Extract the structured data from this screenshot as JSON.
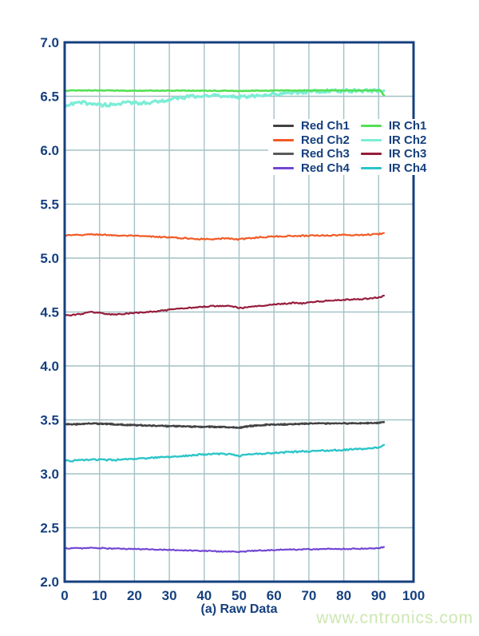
{
  "watermark": {
    "text": "www.cntronics.com",
    "color": "#cde7b2"
  },
  "colors": {
    "axis_text": "#16407f",
    "plot_border": "#16407f",
    "gridline": "#a4c2c6",
    "background": "#ffffff"
  },
  "chart_data": {
    "type": "line",
    "title": "",
    "xlabel": "(a) Raw Data",
    "ylabel": "",
    "xlim": [
      0,
      100
    ],
    "ylim": [
      2.0,
      7.0
    ],
    "x_ticks": [
      0,
      10,
      20,
      30,
      40,
      50,
      60,
      70,
      80,
      90,
      100
    ],
    "y_ticks": [
      2.0,
      2.5,
      3.0,
      3.5,
      4.0,
      4.5,
      5.0,
      5.5,
      6.0,
      6.5,
      7.0
    ],
    "grid": true,
    "legend_position": "top-right-inside",
    "series": [
      {
        "name": "Red Ch1",
        "color": "#414042",
        "width": 2.2,
        "noise": 0.005,
        "points": [
          [
            0,
            3.455
          ],
          [
            5,
            3.46
          ],
          [
            8,
            3.465
          ],
          [
            12,
            3.46
          ],
          [
            16,
            3.455
          ],
          [
            20,
            3.45
          ],
          [
            25,
            3.445
          ],
          [
            30,
            3.44
          ],
          [
            35,
            3.437
          ],
          [
            40,
            3.435
          ],
          [
            45,
            3.434
          ],
          [
            48,
            3.43
          ],
          [
            50,
            3.425
          ],
          [
            53,
            3.44
          ],
          [
            56,
            3.45
          ],
          [
            60,
            3.455
          ],
          [
            64,
            3.458
          ],
          [
            68,
            3.462
          ],
          [
            72,
            3.465
          ],
          [
            76,
            3.465
          ],
          [
            80,
            3.466
          ],
          [
            84,
            3.466
          ],
          [
            87,
            3.468
          ],
          [
            90,
            3.47
          ],
          [
            91.5,
            3.478
          ]
        ]
      },
      {
        "name": "Red Ch2",
        "color": "#f15a24",
        "width": 2.2,
        "noise": 0.006,
        "points": [
          [
            0,
            5.21
          ],
          [
            4,
            5.213
          ],
          [
            8,
            5.22
          ],
          [
            12,
            5.215
          ],
          [
            16,
            5.208
          ],
          [
            20,
            5.205
          ],
          [
            24,
            5.2
          ],
          [
            28,
            5.195
          ],
          [
            32,
            5.188
          ],
          [
            36,
            5.18
          ],
          [
            40,
            5.176
          ],
          [
            44,
            5.18
          ],
          [
            47,
            5.182
          ],
          [
            50,
            5.172
          ],
          [
            53,
            5.185
          ],
          [
            56,
            5.193
          ],
          [
            60,
            5.2
          ],
          [
            64,
            5.204
          ],
          [
            68,
            5.207
          ],
          [
            72,
            5.21
          ],
          [
            76,
            5.21
          ],
          [
            80,
            5.214
          ],
          [
            84,
            5.214
          ],
          [
            87,
            5.218
          ],
          [
            90,
            5.222
          ],
          [
            91.5,
            5.232
          ]
        ]
      },
      {
        "name": "Red Ch3",
        "color": "#58595b",
        "width": 2.2,
        "noise": 0.005,
        "points": [
          [
            0,
            3.459
          ],
          [
            5,
            3.464
          ],
          [
            8,
            3.469
          ],
          [
            12,
            3.464
          ],
          [
            16,
            3.459
          ],
          [
            20,
            3.454
          ],
          [
            25,
            3.449
          ],
          [
            30,
            3.444
          ],
          [
            35,
            3.441
          ],
          [
            40,
            3.439
          ],
          [
            45,
            3.438
          ],
          [
            48,
            3.434
          ],
          [
            50,
            3.429
          ],
          [
            53,
            3.444
          ],
          [
            56,
            3.454
          ],
          [
            60,
            3.459
          ],
          [
            64,
            3.462
          ],
          [
            68,
            3.466
          ],
          [
            72,
            3.469
          ],
          [
            76,
            3.469
          ],
          [
            80,
            3.47
          ],
          [
            84,
            3.47
          ],
          [
            87,
            3.472
          ],
          [
            90,
            3.474
          ],
          [
            91.5,
            3.482
          ]
        ]
      },
      {
        "name": "Red Ch4",
        "color": "#7247d4",
        "width": 2.2,
        "noise": 0.005,
        "points": [
          [
            0,
            2.31
          ],
          [
            5,
            2.31
          ],
          [
            8,
            2.314
          ],
          [
            12,
            2.308
          ],
          [
            16,
            2.305
          ],
          [
            20,
            2.302
          ],
          [
            25,
            2.3
          ],
          [
            30,
            2.296
          ],
          [
            35,
            2.29
          ],
          [
            40,
            2.285
          ],
          [
            44,
            2.281
          ],
          [
            48,
            2.279
          ],
          [
            50,
            2.276
          ],
          [
            53,
            2.284
          ],
          [
            56,
            2.29
          ],
          [
            60,
            2.294
          ],
          [
            65,
            2.298
          ],
          [
            70,
            2.3
          ],
          [
            75,
            2.303
          ],
          [
            80,
            2.304
          ],
          [
            84,
            2.306
          ],
          [
            87,
            2.308
          ],
          [
            90,
            2.312
          ],
          [
            91.5,
            2.322
          ]
        ]
      },
      {
        "name": "IR Ch1",
        "color": "#55e055",
        "width": 2.6,
        "noise": 0.003,
        "points": [
          [
            0,
            6.553
          ],
          [
            10,
            6.554
          ],
          [
            20,
            6.552
          ],
          [
            30,
            6.553
          ],
          [
            40,
            6.552
          ],
          [
            50,
            6.55
          ],
          [
            60,
            6.553
          ],
          [
            70,
            6.554
          ],
          [
            80,
            6.554
          ],
          [
            88,
            6.555
          ],
          [
            90.5,
            6.553
          ],
          [
            91.5,
            6.51
          ]
        ]
      },
      {
        "name": "IR Ch2",
        "color": "#7cedd6",
        "width": 3.2,
        "noise": 0.016,
        "points": [
          [
            0,
            6.408
          ],
          [
            2,
            6.425
          ],
          [
            4,
            6.438
          ],
          [
            6,
            6.44
          ],
          [
            8,
            6.432
          ],
          [
            10,
            6.422
          ],
          [
            12,
            6.42
          ],
          [
            14,
            6.426
          ],
          [
            16,
            6.434
          ],
          [
            18,
            6.438
          ],
          [
            20,
            6.44
          ],
          [
            22,
            6.44
          ],
          [
            24,
            6.444
          ],
          [
            26,
            6.45
          ],
          [
            28,
            6.458
          ],
          [
            30,
            6.468
          ],
          [
            32,
            6.478
          ],
          [
            34,
            6.488
          ],
          [
            36,
            6.495
          ],
          [
            38,
            6.5
          ],
          [
            40,
            6.503
          ],
          [
            42,
            6.506
          ],
          [
            44,
            6.508
          ],
          [
            46,
            6.505
          ],
          [
            48,
            6.5
          ],
          [
            50,
            6.49
          ],
          [
            52,
            6.497
          ],
          [
            54,
            6.505
          ],
          [
            56,
            6.512
          ],
          [
            58,
            6.518
          ],
          [
            60,
            6.52
          ],
          [
            62,
            6.525
          ],
          [
            64,
            6.53
          ],
          [
            66,
            6.536
          ],
          [
            68,
            6.54
          ],
          [
            70,
            6.543
          ],
          [
            73,
            6.546
          ],
          [
            76,
            6.548
          ],
          [
            80,
            6.55
          ],
          [
            85,
            6.551
          ],
          [
            90,
            6.552
          ],
          [
            91.5,
            6.552
          ]
        ]
      },
      {
        "name": "IR Ch3",
        "color": "#971c3c",
        "width": 2.2,
        "noise": 0.006,
        "points": [
          [
            0,
            4.468
          ],
          [
            3,
            4.474
          ],
          [
            6,
            4.49
          ],
          [
            8,
            4.5
          ],
          [
            10,
            4.494
          ],
          [
            12,
            4.48
          ],
          [
            14,
            4.476
          ],
          [
            16,
            4.48
          ],
          [
            20,
            4.49
          ],
          [
            24,
            4.5
          ],
          [
            28,
            4.512
          ],
          [
            32,
            4.526
          ],
          [
            36,
            4.54
          ],
          [
            40,
            4.55
          ],
          [
            43,
            4.556
          ],
          [
            46,
            4.56
          ],
          [
            48,
            4.554
          ],
          [
            50,
            4.536
          ],
          [
            52,
            4.542
          ],
          [
            55,
            4.552
          ],
          [
            58,
            4.565
          ],
          [
            60,
            4.572
          ],
          [
            63,
            4.578
          ],
          [
            66,
            4.585
          ],
          [
            68,
            4.58
          ],
          [
            70,
            4.59
          ],
          [
            73,
            4.598
          ],
          [
            76,
            4.605
          ],
          [
            80,
            4.612
          ],
          [
            83,
            4.617
          ],
          [
            86,
            4.622
          ],
          [
            89,
            4.632
          ],
          [
            90.5,
            4.64
          ],
          [
            91.5,
            4.652
          ]
        ]
      },
      {
        "name": "IR Ch4",
        "color": "#2bc5c8",
        "width": 2.4,
        "noise": 0.007,
        "points": [
          [
            0,
            3.118
          ],
          [
            4,
            3.124
          ],
          [
            8,
            3.134
          ],
          [
            11,
            3.128
          ],
          [
            14,
            3.128
          ],
          [
            18,
            3.134
          ],
          [
            22,
            3.14
          ],
          [
            26,
            3.15
          ],
          [
            30,
            3.156
          ],
          [
            34,
            3.166
          ],
          [
            38,
            3.176
          ],
          [
            42,
            3.182
          ],
          [
            45,
            3.186
          ],
          [
            48,
            3.178
          ],
          [
            50,
            3.166
          ],
          [
            52,
            3.176
          ],
          [
            55,
            3.186
          ],
          [
            58,
            3.19
          ],
          [
            61,
            3.196
          ],
          [
            64,
            3.2
          ],
          [
            67,
            3.206
          ],
          [
            70,
            3.21
          ],
          [
            73,
            3.214
          ],
          [
            76,
            3.216
          ],
          [
            79,
            3.22
          ],
          [
            82,
            3.226
          ],
          [
            85,
            3.23
          ],
          [
            88,
            3.236
          ],
          [
            90,
            3.242
          ],
          [
            91.5,
            3.268
          ]
        ]
      }
    ]
  }
}
